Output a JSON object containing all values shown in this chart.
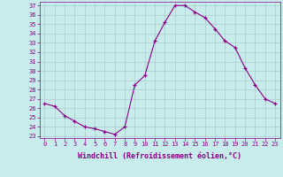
{
  "x": [
    0,
    1,
    2,
    3,
    4,
    5,
    6,
    7,
    8,
    9,
    10,
    11,
    12,
    13,
    14,
    15,
    16,
    17,
    18,
    19,
    20,
    21,
    22,
    23
  ],
  "y": [
    26.5,
    26.2,
    25.2,
    24.6,
    24.0,
    23.8,
    23.5,
    23.2,
    24.0,
    28.5,
    29.5,
    33.2,
    35.2,
    37.0,
    37.0,
    36.3,
    35.7,
    34.5,
    33.2,
    32.5,
    30.3,
    28.5,
    27.0,
    26.5
  ],
  "line_color": "#880088",
  "marker": "+",
  "marker_size": 3,
  "bg_color": "#c8ecec",
  "grid_color": "#aacccc",
  "ylabel_vals": [
    23,
    24,
    25,
    26,
    27,
    28,
    29,
    30,
    31,
    32,
    33,
    34,
    35,
    36,
    37
  ],
  "ylim": [
    22.8,
    37.4
  ],
  "xlim": [
    -0.5,
    23.5
  ],
  "xlabel": "Windchill (Refroidissement éolien,°C)",
  "tick_color": "#880088",
  "label_color": "#880088",
  "font_size_ticks": 5.0,
  "font_size_xlabel": 6.0
}
